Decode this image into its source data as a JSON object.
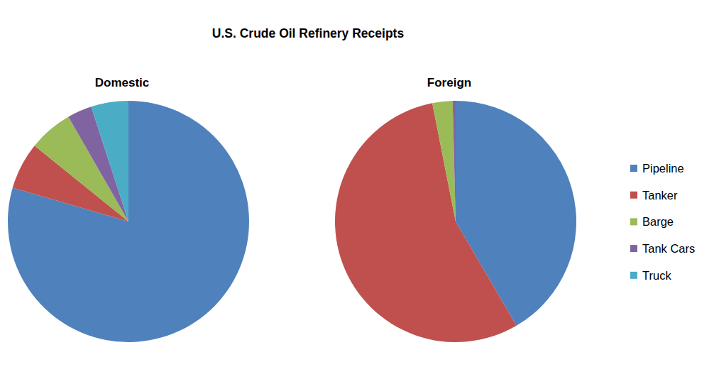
{
  "chart_data": {
    "type": "pie",
    "title": "U.S. Crude Oil Refinery Receipts",
    "categories": [
      "Pipeline",
      "Tanker",
      "Barge",
      "Tank Cars",
      "Truck"
    ],
    "colors": [
      "#4f81bd",
      "#c0504d",
      "#9bbb59",
      "#8064a2",
      "#4bacc6"
    ],
    "series": [
      {
        "name": "Domestic",
        "values": [
          79.5,
          6.3,
          5.9,
          3.3,
          5.0
        ]
      },
      {
        "name": "Foreign",
        "values": [
          41.6,
          55.3,
          2.7,
          0.4,
          0
        ]
      }
    ],
    "legend": "right"
  }
}
